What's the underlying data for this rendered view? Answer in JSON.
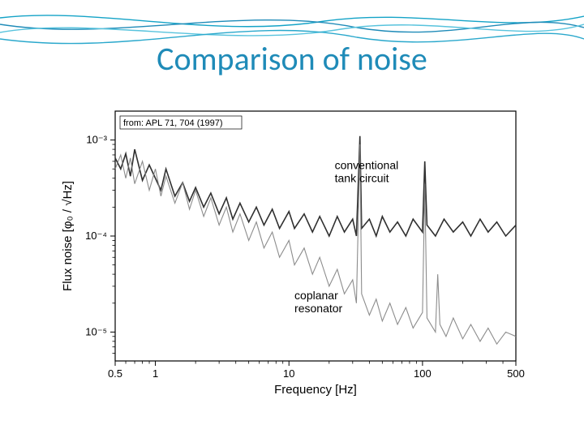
{
  "slide": {
    "title": "Comparison of noise",
    "title_color": "#1f8bb8",
    "title_fontsize": 40,
    "background_color": "#ffffff",
    "decoration": {
      "wave_colors": [
        "#14a3c7",
        "#1f8bb8",
        "#58c3dd",
        "#2aa8cc"
      ],
      "wave_stroke_width": 1.4
    }
  },
  "chart": {
    "type": "line",
    "citation": "from: APL 71, 704 (1997)",
    "citation_fontsize": 11,
    "xlabel": "Frequency [Hz]",
    "ylabel": "Flux noise [φ₀ / √Hz]",
    "label_fontsize": 15,
    "tick_fontsize": 13,
    "x_scale": "log",
    "y_scale": "log",
    "xlim": [
      0.5,
      500
    ],
    "ylim": [
      5e-06,
      0.002
    ],
    "x_ticks": [
      0.5,
      1,
      10,
      100,
      500
    ],
    "x_tick_labels": [
      "0.5",
      "1",
      "10",
      "100",
      "500"
    ],
    "y_ticks": [
      1e-05,
      0.0001,
      0.001
    ],
    "y_tick_labels": [
      "10⁻⁵",
      "10⁻⁴",
      "10⁻³"
    ],
    "plot_area_bg": "#ffffff",
    "axis_color": "#000000",
    "axis_stroke_width": 1.2,
    "annotations": [
      {
        "text": "conventional\ntank circuit",
        "x_hz": 22,
        "y_flux": 0.0005
      },
      {
        "text": "coplanar\nresonator",
        "x_hz": 11,
        "y_flux": 2.2e-05
      }
    ],
    "annotation_fontsize": 14,
    "series": [
      {
        "name": "conventional_tank_circuit",
        "color": "#303030",
        "stroke_width": 1.6,
        "stroke_opacity": 1.0,
        "points": [
          [
            0.5,
            0.00065
          ],
          [
            0.55,
            0.0005
          ],
          [
            0.6,
            0.00072
          ],
          [
            0.65,
            0.00042
          ],
          [
            0.7,
            0.0008
          ],
          [
            0.8,
            0.00038
          ],
          [
            0.9,
            0.00055
          ],
          [
            1.0,
            0.0004
          ],
          [
            1.1,
            0.0003
          ],
          [
            1.2,
            0.0005
          ],
          [
            1.4,
            0.00026
          ],
          [
            1.6,
            0.00036
          ],
          [
            1.8,
            0.00023
          ],
          [
            2.0,
            0.00032
          ],
          [
            2.3,
            0.0002
          ],
          [
            2.6,
            0.00028
          ],
          [
            3.0,
            0.00017
          ],
          [
            3.4,
            0.00025
          ],
          [
            3.8,
            0.00015
          ],
          [
            4.3,
            0.00022
          ],
          [
            5.0,
            0.00014
          ],
          [
            5.7,
            0.0002
          ],
          [
            6.5,
            0.00013
          ],
          [
            7.5,
            0.00019
          ],
          [
            8.5,
            0.00012
          ],
          [
            10,
            0.00018
          ],
          [
            11,
            0.00012
          ],
          [
            13,
            0.00017
          ],
          [
            15,
            0.00011
          ],
          [
            17,
            0.00016
          ],
          [
            20,
            0.0001
          ],
          [
            23,
            0.00016
          ],
          [
            26,
            0.00011
          ],
          [
            30,
            0.00015
          ],
          [
            32,
            0.0001
          ],
          [
            34,
            0.0011
          ],
          [
            35,
            0.00012
          ],
          [
            40,
            0.00015
          ],
          [
            45,
            0.0001
          ],
          [
            50,
            0.00016
          ],
          [
            57,
            0.00011
          ],
          [
            65,
            0.00014
          ],
          [
            75,
            0.0001
          ],
          [
            85,
            0.00015
          ],
          [
            100,
            0.00011
          ],
          [
            104,
            0.0006
          ],
          [
            108,
            0.00013
          ],
          [
            125,
            0.0001
          ],
          [
            145,
            0.00015
          ],
          [
            170,
            0.00011
          ],
          [
            200,
            0.00014
          ],
          [
            230,
            0.0001
          ],
          [
            270,
            0.00015
          ],
          [
            310,
            0.00011
          ],
          [
            360,
            0.00014
          ],
          [
            420,
            0.0001
          ],
          [
            500,
            0.00013
          ]
        ]
      },
      {
        "name": "coplanar_resonator",
        "color": "#808080",
        "stroke_width": 1.1,
        "stroke_opacity": 0.9,
        "points": [
          [
            0.5,
            0.0005
          ],
          [
            0.55,
            0.0007
          ],
          [
            0.6,
            0.0004
          ],
          [
            0.65,
            0.00065
          ],
          [
            0.7,
            0.00035
          ],
          [
            0.8,
            0.0006
          ],
          [
            0.9,
            0.0003
          ],
          [
            1.0,
            0.0005
          ],
          [
            1.1,
            0.00026
          ],
          [
            1.2,
            0.00042
          ],
          [
            1.4,
            0.00022
          ],
          [
            1.6,
            0.00036
          ],
          [
            1.8,
            0.00019
          ],
          [
            2.0,
            0.0003
          ],
          [
            2.3,
            0.00016
          ],
          [
            2.6,
            0.00025
          ],
          [
            3.0,
            0.00013
          ],
          [
            3.4,
            0.0002
          ],
          [
            3.8,
            0.00011
          ],
          [
            4.3,
            0.00017
          ],
          [
            5.0,
            9e-05
          ],
          [
            5.7,
            0.00014
          ],
          [
            6.5,
            7.5e-05
          ],
          [
            7.5,
            0.00011
          ],
          [
            8.5,
            6e-05
          ],
          [
            10,
            9e-05
          ],
          [
            11,
            5e-05
          ],
          [
            13,
            7.5e-05
          ],
          [
            15,
            4e-05
          ],
          [
            17,
            6e-05
          ],
          [
            20,
            3e-05
          ],
          [
            23,
            4.5e-05
          ],
          [
            26,
            2.5e-05
          ],
          [
            30,
            3.5e-05
          ],
          [
            32,
            2e-05
          ],
          [
            34,
            0.0009
          ],
          [
            35,
            2.5e-05
          ],
          [
            40,
            1.5e-05
          ],
          [
            45,
            2.2e-05
          ],
          [
            50,
            1.3e-05
          ],
          [
            57,
            2e-05
          ],
          [
            65,
            1.2e-05
          ],
          [
            75,
            1.8e-05
          ],
          [
            85,
            1.1e-05
          ],
          [
            100,
            1.6e-05
          ],
          [
            104,
            0.00035
          ],
          [
            108,
            1.4e-05
          ],
          [
            125,
            1e-05
          ],
          [
            130,
            4e-05
          ],
          [
            135,
            1.2e-05
          ],
          [
            150,
            9e-06
          ],
          [
            170,
            1.4e-05
          ],
          [
            200,
            8.5e-06
          ],
          [
            230,
            1.2e-05
          ],
          [
            270,
            8e-06
          ],
          [
            310,
            1.1e-05
          ],
          [
            360,
            7.5e-06
          ],
          [
            420,
            1e-05
          ],
          [
            500,
            9e-06
          ]
        ]
      }
    ]
  }
}
